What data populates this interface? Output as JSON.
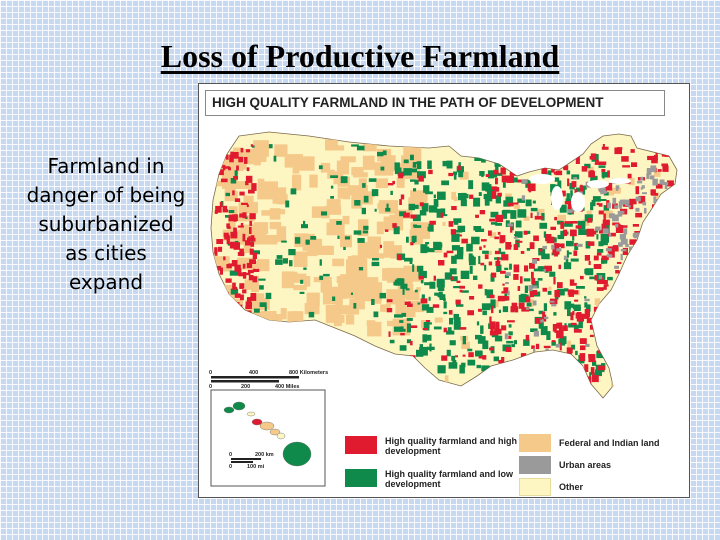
{
  "slide": {
    "title": "Loss of Productive Farmland",
    "side_text": "Farmland in danger of being suburbanized as cities expand"
  },
  "map": {
    "header": "HIGH QUALITY FARMLAND IN THE PATH OF DEVELOPMENT",
    "scale": {
      "km_labels": [
        "0",
        "400",
        "800 Kilometers"
      ],
      "mi_labels": [
        "0",
        "200",
        "400 Miles"
      ]
    },
    "inset_scale": {
      "km_labels": [
        "0",
        "200 km"
      ],
      "mi_labels": [
        "0",
        "100 mi"
      ]
    },
    "colors": {
      "high_dev": "#e01b2f",
      "low_dev": "#0f8a4a",
      "federal": "#f5c98a",
      "urban": "#9a9a9a",
      "other": "#fdf6c3",
      "water": "#ffffff"
    },
    "legend": [
      {
        "label": "High quality farmland and high development",
        "color": "#e01b2f"
      },
      {
        "label": "High quality farmland and low development",
        "color": "#0f8a4a"
      },
      {
        "label": "Federal and Indian land",
        "color": "#f5c98a"
      },
      {
        "label": "Urban areas",
        "color": "#9a9a9a"
      },
      {
        "label": "Other",
        "color": "#fdf6c3"
      }
    ]
  }
}
